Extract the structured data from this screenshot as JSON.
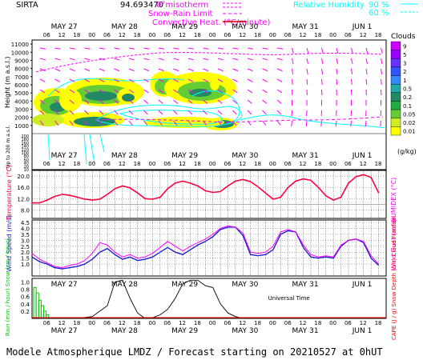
{
  "header": {
    "station": "SIRTA",
    "coord": "94.693470",
    "legend_isotherm": "0°misotherm",
    "legend_snow_rain": "Snow-Rain Limit",
    "legend_convective": "Convective Heat. (°C/minute)",
    "legend_rh": "Relative Humidity",
    "legend_rh_90": "90 %",
    "legend_rh_60": "60 %"
  },
  "dates": [
    "MAY 27",
    "MAY 28",
    "MAY 29",
    "MAY 30",
    "MAY 31",
    "JUN  1"
  ],
  "hour_ticks": [
    "06",
    "12",
    "18",
    "00",
    "06",
    "12",
    "18",
    "00",
    "06",
    "12",
    "18",
    "00",
    "06",
    "12",
    "18",
    "00",
    "06",
    "12",
    "18",
    "00",
    "06",
    "12",
    "18"
  ],
  "footer": "Modele Atmospherique LMDZ / Forecast starting on 20210527 at 0hUT",
  "universal_time": "Universal Time",
  "colors": {
    "magenta": "#ff00ff",
    "cyan": "#00ffff",
    "temperature": "#ff0040",
    "wind": "#2020d0",
    "gust": "#ff00ff",
    "rain": "#00cc00",
    "snow_depth": "#000000"
  },
  "clouds": {
    "title": "Clouds",
    "unit": "(g/kg)",
    "levels": [
      "9",
      "5",
      "3",
      "2",
      "1",
      "0.5",
      "0.2",
      "0.1",
      "0.05",
      "0.02",
      "0.01"
    ],
    "colors": [
      "#cc00ff",
      "#9900ff",
      "#6633ff",
      "#3355ff",
      "#3388ff",
      "#22aaaa",
      "#228866",
      "#22aa44",
      "#66cc33",
      "#ccee22",
      "#ffff00"
    ]
  },
  "chart_data": [
    {
      "type": "heatmap",
      "name": "Clouds",
      "ylabel": "Height (m a.s.l.)",
      "ylabel2": "Up to 200 m a.s.l.",
      "yticks_upper": [
        11000,
        10000,
        9000,
        8000,
        7000,
        6000,
        5000,
        4000,
        3000,
        2000,
        1000
      ],
      "yticks_lower": [
        200,
        180,
        160,
        140,
        120,
        100,
        80,
        60,
        40,
        20,
        10
      ],
      "ylim": [
        0,
        11500
      ]
    },
    {
      "type": "line",
      "name": "Temperature",
      "ylabel": "Temperature (°C)",
      "ylabel_right": "HUMIDEX (°C)",
      "ylim": [
        5,
        22
      ],
      "yticks": [
        20.0,
        16.0,
        12.0,
        8.0
      ],
      "x_hours": [
        0,
        3,
        6,
        9,
        12,
        15,
        18,
        21,
        24,
        27,
        30,
        33,
        36,
        39,
        42,
        45,
        48,
        51,
        54,
        57,
        60,
        63,
        66,
        69,
        72,
        75,
        78,
        81,
        84,
        87,
        90,
        93,
        96,
        99,
        102,
        105,
        108,
        111,
        114,
        117,
        120,
        123,
        126,
        129,
        132,
        135,
        138
      ],
      "values": [
        10.5,
        10.5,
        11.5,
        12.8,
        13.5,
        13.2,
        12.5,
        11.8,
        11.5,
        11.8,
        13.5,
        15.5,
        16.5,
        15.8,
        14.0,
        12.0,
        11.8,
        12.5,
        15.5,
        17.5,
        18.2,
        17.5,
        16.5,
        14.8,
        14.2,
        14.5,
        16.5,
        18.2,
        18.8,
        18.0,
        16.2,
        14.0,
        11.8,
        12.5,
        16.0,
        18.2,
        19.0,
        18.5,
        16.0,
        13.0,
        11.5,
        12.5,
        17.5,
        19.8,
        20.5,
        19.5,
        14.0
      ]
    },
    {
      "type": "line",
      "name": "Wind Speed",
      "ylabel": "Wind Speed (m/s)",
      "ylabel_right": "Wind Gust (m/s)",
      "ylim": [
        0,
        4.7
      ],
      "yticks": [
        4.5,
        4.0,
        3.5,
        3.0,
        2.5,
        2.0,
        1.5,
        1.0
      ],
      "x_hours": [
        0,
        3,
        6,
        9,
        12,
        15,
        18,
        21,
        24,
        27,
        30,
        33,
        36,
        39,
        42,
        45,
        48,
        51,
        54,
        57,
        60,
        63,
        66,
        69,
        72,
        75,
        78,
        81,
        84,
        87,
        90,
        93,
        96,
        99,
        102,
        105,
        108,
        111,
        114,
        117,
        120,
        123,
        126,
        129,
        132,
        135,
        138
      ],
      "series": [
        {
          "name": "Wind Speed",
          "values": [
            1.6,
            1.2,
            1.0,
            0.7,
            0.6,
            0.7,
            0.8,
            1.0,
            1.4,
            2.0,
            2.3,
            1.8,
            1.4,
            1.6,
            1.3,
            1.4,
            1.6,
            2.0,
            2.4,
            2.0,
            1.8,
            2.2,
            2.6,
            2.9,
            3.3,
            3.9,
            4.1,
            4.1,
            3.4,
            1.8,
            1.7,
            1.8,
            2.2,
            3.5,
            3.8,
            3.7,
            2.4,
            1.6,
            1.5,
            1.6,
            1.5,
            2.5,
            3.0,
            3.1,
            2.8,
            1.5,
            0.9
          ]
        },
        {
          "name": "Wind Gust",
          "values": [
            1.9,
            1.4,
            1.1,
            0.8,
            0.7,
            0.9,
            1.0,
            1.3,
            1.9,
            2.8,
            2.6,
            2.0,
            1.6,
            1.8,
            1.5,
            1.6,
            1.9,
            2.4,
            2.9,
            2.5,
            2.1,
            2.5,
            2.8,
            3.1,
            3.5,
            4.0,
            4.2,
            4.1,
            3.6,
            2.0,
            1.9,
            2.0,
            2.5,
            3.7,
            3.9,
            3.7,
            2.6,
            1.8,
            1.6,
            1.7,
            1.6,
            2.6,
            3.0,
            3.1,
            2.9,
            1.7,
            1.0
          ]
        }
      ]
    },
    {
      "type": "bar",
      "name": "Precipitation",
      "ylabel": "Rain (mm / hour)  Snow (cm / hour)",
      "ylabel_right": "CAPE (J / g)  Snow Depth (cm)  Cloud Fraction",
      "ylim": [
        0,
        1.1
      ],
      "yticks": [
        1.0,
        0.8,
        0.6,
        0.4,
        0.2
      ],
      "rain_x_hours": [
        0,
        1,
        2,
        3,
        4,
        5
      ],
      "rain_values": [
        0.85,
        0.7,
        0.5,
        0.35,
        0.2,
        0.1
      ],
      "snow_depth_x_hours": [
        0,
        6,
        12,
        18,
        24,
        30,
        33,
        36,
        39,
        42,
        45,
        48,
        51,
        54,
        57,
        60,
        63,
        66,
        69,
        72,
        75,
        78,
        81,
        84,
        87,
        90,
        96,
        102,
        108,
        114,
        120,
        126,
        132,
        138
      ],
      "snow_depth_values": [
        0.0,
        0.0,
        0.0,
        0.0,
        0.05,
        0.35,
        1.0,
        1.05,
        0.55,
        0.15,
        0.0,
        0.02,
        0.1,
        0.25,
        0.55,
        0.95,
        1.05,
        1.05,
        0.9,
        0.85,
        0.4,
        0.15,
        0.05,
        0.0,
        0.0,
        0.0,
        0.0,
        0.0,
        0.0,
        0.0,
        0.0,
        0.0,
        0.0,
        0.0
      ]
    }
  ]
}
